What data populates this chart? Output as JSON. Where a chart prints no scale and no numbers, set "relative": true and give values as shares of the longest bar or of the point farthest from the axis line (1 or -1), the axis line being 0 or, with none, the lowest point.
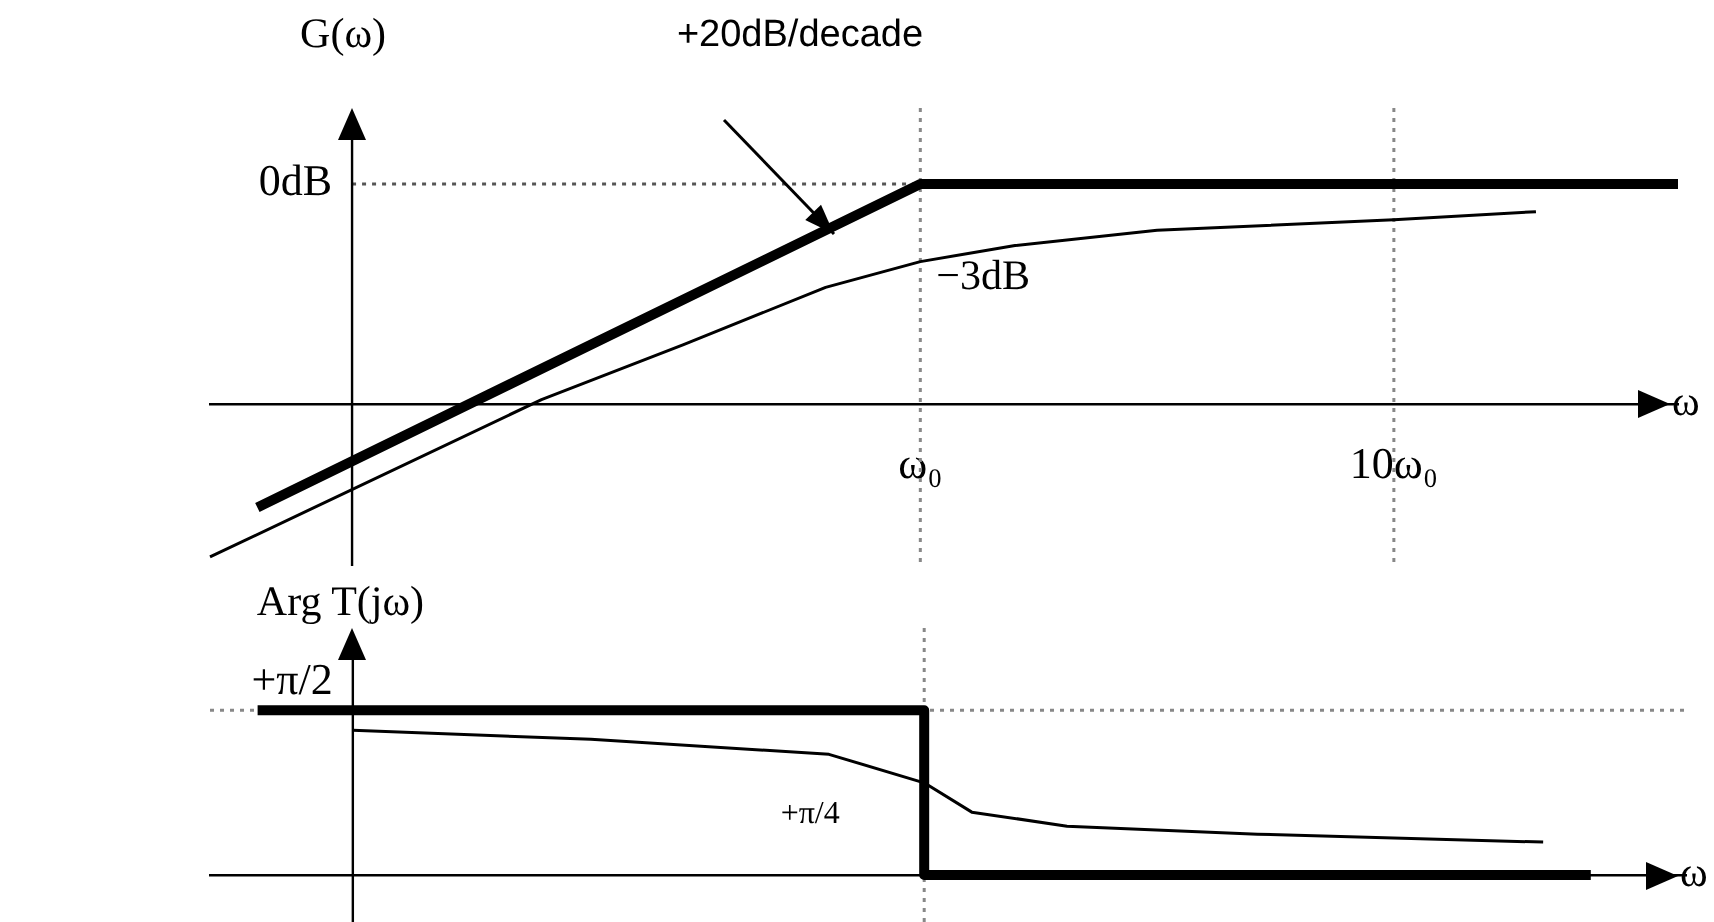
{
  "chart_data": [
    {
      "type": "line",
      "relative": true,
      "ylabel": "G(ω)",
      "xlabel": "ω",
      "categories": [
        null,
        null,
        null,
        null,
        null,
        null,
        null,
        null,
        null,
        null,
        null,
        null,
        null,
        null,
        null,
        "ω₀",
        null,
        null,
        null,
        null,
        null,
        null,
        null,
        null,
        null,
        "10ω₀",
        null,
        null,
        null,
        null,
        null,
        null
      ],
      "annotations": [
        "+20dB/decade",
        {
          "text": "−3dB",
          "x": "ω₀",
          "y": 0.647
        }
      ],
      "ref_lines": [
        {
          "axis": "y",
          "value": 1,
          "label": "0dB",
          "color": "#555555",
          "line_style": "dotted"
        },
        {
          "axis": "x",
          "value": "ω₀",
          "color": "#888888",
          "line_style": "dotted"
        },
        {
          "axis": "x",
          "value": "10ω₀",
          "color": "#888888",
          "line_style": "dotted"
        }
      ],
      "series": [
        {
          "color": "#000000",
          "values": [
            null,
            -0.47,
            null,
            null,
            null,
            null,
            null,
            null,
            null,
            null,
            null,
            null,
            null,
            null,
            null,
            1,
            null,
            null,
            null,
            null,
            null,
            null,
            null,
            null,
            null,
            null,
            null,
            null,
            null,
            null,
            null,
            1
          ]
        },
        {
          "color": "#000000",
          "values": [
            -0.695,
            null,
            null,
            null,
            null,
            null,
            null,
            0.02,
            null,
            null,
            0.27,
            null,
            null,
            0.53,
            null,
            0.647,
            null,
            0.72,
            null,
            null,
            0.79,
            null,
            null,
            null,
            null,
            0.837,
            null,
            null,
            0.874,
            null,
            null,
            null
          ]
        }
      ]
    },
    {
      "type": "line",
      "relative": true,
      "tick_labels": false,
      "ylabel": "Arg T(jω)",
      "xlabel": "ω",
      "categories": [
        null,
        null,
        null,
        null,
        null,
        null,
        null,
        null,
        null,
        null,
        null,
        null,
        null,
        null,
        null,
        "ω₀",
        null,
        null,
        null,
        null,
        null,
        null,
        null,
        null,
        null,
        "10ω₀",
        null,
        null,
        null,
        null,
        null,
        null
      ],
      "annotations": [
        {
          "text": "+π/4",
          "x": "ω₀",
          "y": 0.5
        }
      ],
      "ref_lines": [
        {
          "axis": "y",
          "value": 1,
          "label": "+π/2",
          "color": "#888888",
          "line_style": "dotted"
        },
        {
          "axis": "x",
          "value": "ω₀",
          "color": "#888888",
          "line_style": "dotted"
        }
      ],
      "series": [
        {
          "type": "step",
          "color": "#000000",
          "values": [
            null,
            1,
            null,
            null,
            null,
            null,
            null,
            null,
            null,
            null,
            null,
            null,
            null,
            null,
            null,
            0,
            null,
            null,
            null,
            null,
            null,
            null,
            null,
            null,
            null,
            null,
            null,
            null,
            null,
            0,
            null,
            null
          ]
        },
        {
          "type": "line",
          "color": "#000000",
          "values": [
            null,
            null,
            null,
            0.879,
            null,
            null,
            null,
            null,
            0.824,
            null,
            null,
            null,
            null,
            0.733,
            null,
            0.56,
            0.382,
            null,
            0.297,
            null,
            null,
            null,
            0.248,
            null,
            null,
            null,
            null,
            null,
            0.2,
            null,
            null,
            null
          ]
        }
      ]
    }
  ]
}
